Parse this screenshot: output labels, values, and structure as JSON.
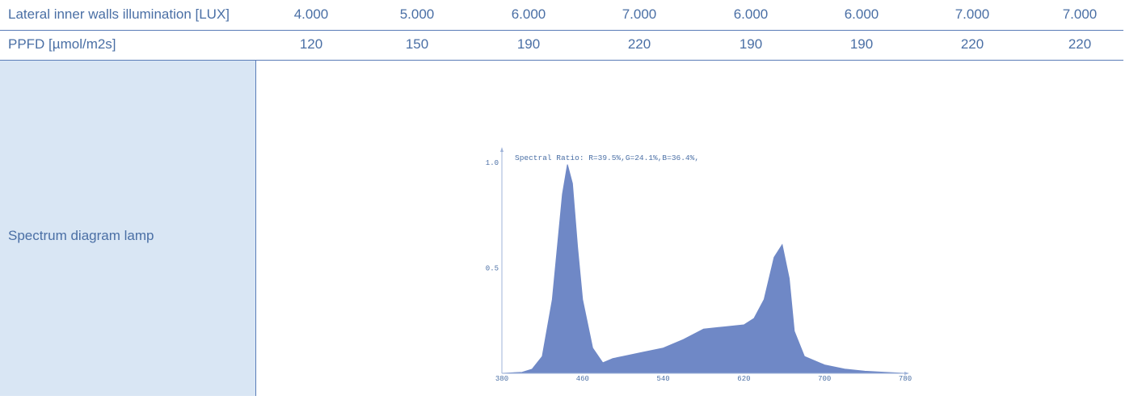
{
  "table": {
    "rows": [
      {
        "label": "Lateral inner walls illumination [LUX]",
        "values": [
          "4.000",
          "5.000",
          "6.000",
          "7.000",
          "6.000",
          "6.000",
          "7.000",
          "7.000"
        ]
      },
      {
        "label": "PPFD [µmol/m2s]",
        "values": [
          "120",
          "150",
          "190",
          "220",
          "190",
          "190",
          "220",
          "220"
        ]
      }
    ],
    "spectrum_label": "Spectrum diagram lamp"
  },
  "colors": {
    "text": "#4a6fa5",
    "line": "#5a7cb8",
    "label_bg": "#d9e6f4",
    "spectrum_fill": "#6f88c6"
  },
  "chart_data": {
    "type": "area",
    "title": "Spectral Ratio:  R=39.5%,G=24.1%,B=36.4%,",
    "xlabel": "",
    "ylabel": "",
    "xlim": [
      380,
      780
    ],
    "ylim": [
      0,
      1.0
    ],
    "x_ticks": [
      "380",
      "460",
      "540",
      "620",
      "700",
      "780"
    ],
    "y_ticks": [
      "1.0",
      "0.5"
    ],
    "grid": false,
    "series": [
      {
        "x": [
          380,
          400,
          410,
          420,
          430,
          440,
          445,
          450,
          455,
          460,
          470,
          480,
          490,
          500,
          520,
          540,
          560,
          580,
          600,
          620,
          630,
          640,
          650,
          658,
          665,
          670,
          680,
          700,
          720,
          740,
          760,
          780
        ],
        "values": [
          0.0,
          0.005,
          0.02,
          0.08,
          0.35,
          0.85,
          0.99,
          0.9,
          0.6,
          0.35,
          0.12,
          0.05,
          0.07,
          0.08,
          0.1,
          0.12,
          0.16,
          0.21,
          0.22,
          0.23,
          0.26,
          0.35,
          0.55,
          0.61,
          0.45,
          0.2,
          0.08,
          0.04,
          0.02,
          0.01,
          0.005,
          0.0
        ]
      }
    ]
  }
}
